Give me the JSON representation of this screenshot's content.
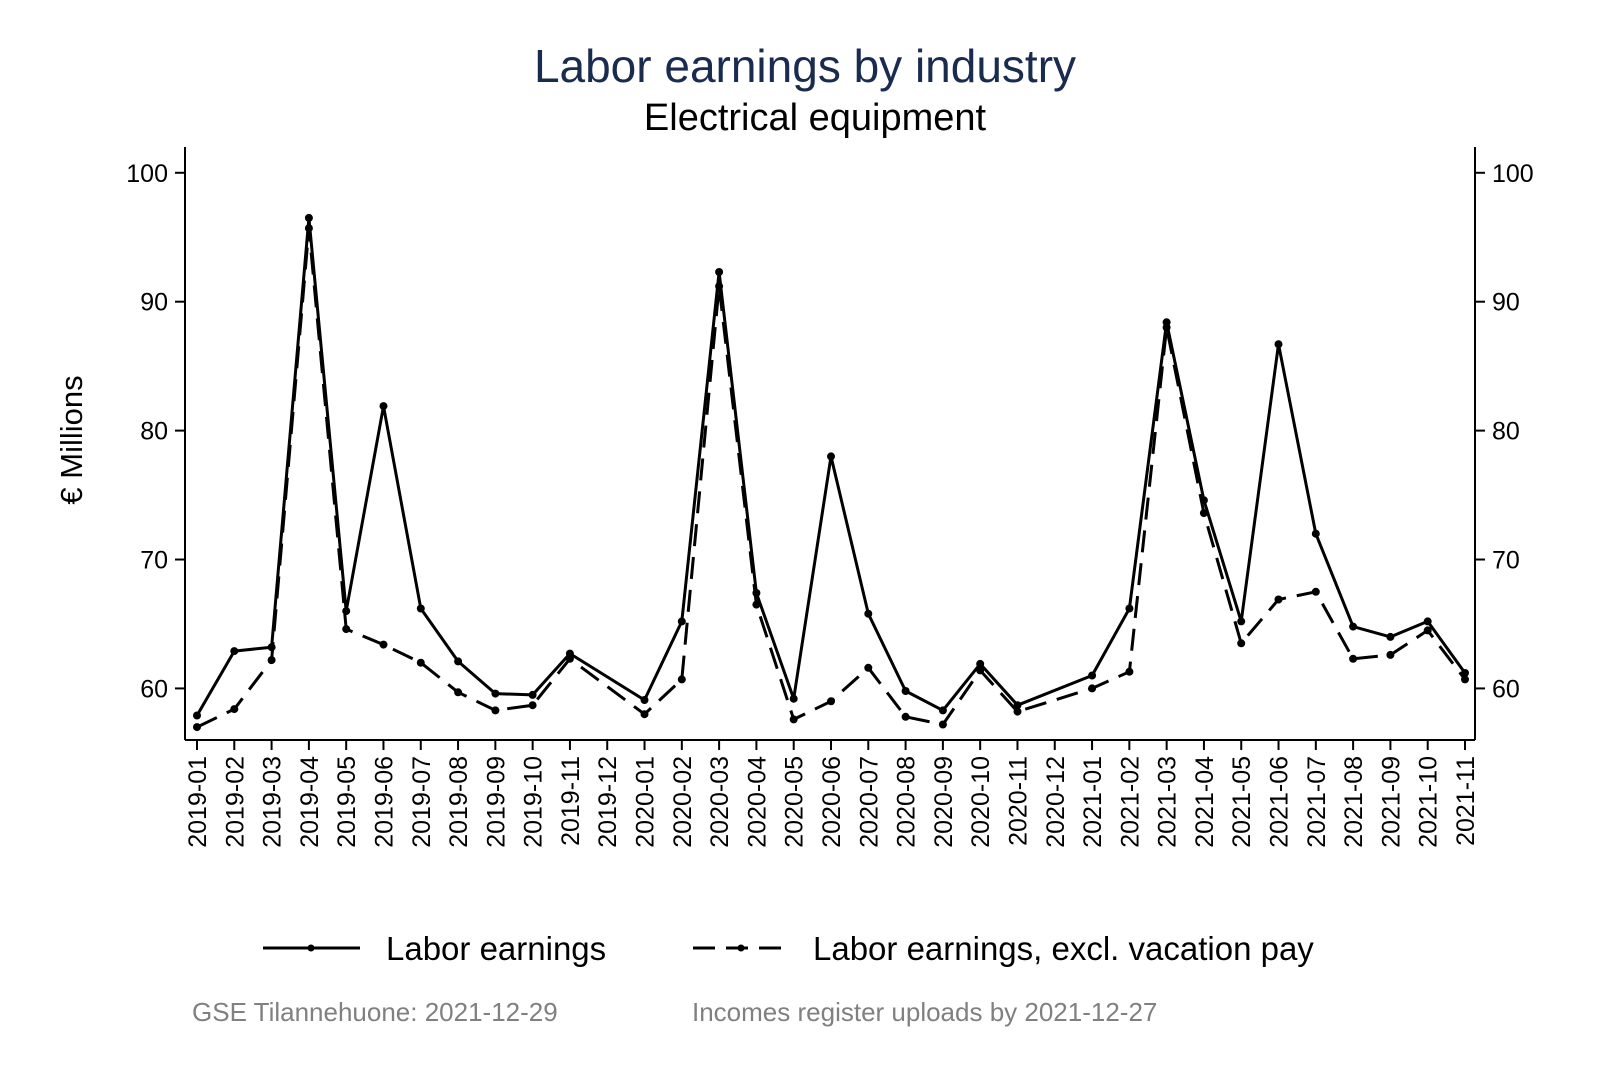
{
  "chart_data": {
    "type": "line",
    "title": "Labor earnings by industry",
    "subtitle": "Electrical equipment",
    "ylabel": "€ Millions",
    "xlabel": "",
    "ylim": [
      56,
      102
    ],
    "yticks": [
      60,
      70,
      80,
      90,
      100
    ],
    "y_axis_right": true,
    "grid": false,
    "legend_position": "bottom",
    "x": [
      "2019-01",
      "2019-02",
      "2019-03",
      "2019-04",
      "2019-05",
      "2019-06",
      "2019-07",
      "2019-08",
      "2019-09",
      "2019-10",
      "2019-11",
      "2019-12",
      "2020-01",
      "2020-02",
      "2020-03",
      "2020-04",
      "2020-05",
      "2020-06",
      "2020-07",
      "2020-08",
      "2020-09",
      "2020-10",
      "2020-11",
      "2020-12",
      "2021-01",
      "2021-02",
      "2021-03",
      "2021-04",
      "2021-05",
      "2021-06",
      "2021-07",
      "2021-08",
      "2021-09",
      "2021-10",
      "2021-11"
    ],
    "series": [
      {
        "name": "Labor earnings",
        "style": "solid",
        "values": [
          57.9,
          62.9,
          63.2,
          96.5,
          66.0,
          81.9,
          66.2,
          62.1,
          59.6,
          59.5,
          62.7,
          null,
          59.1,
          65.2,
          92.3,
          67.4,
          59.2,
          78.0,
          65.8,
          59.8,
          58.3,
          61.9,
          58.7,
          null,
          61.0,
          66.2,
          88.4,
          74.6,
          65.2,
          86.7,
          72.0,
          64.8,
          64.0,
          65.2,
          61.2
        ]
      },
      {
        "name": "Labor earnings, excl. vacation pay",
        "style": "dashed",
        "values": [
          57.0,
          58.4,
          62.2,
          95.7,
          64.6,
          63.4,
          62.0,
          59.7,
          58.3,
          58.7,
          62.3,
          null,
          58.0,
          60.7,
          91.2,
          66.5,
          57.6,
          59.0,
          61.6,
          57.8,
          57.2,
          61.4,
          58.2,
          null,
          60.0,
          61.3,
          88.0,
          73.6,
          63.5,
          66.9,
          67.5,
          62.3,
          62.6,
          64.5,
          60.7
        ]
      }
    ]
  },
  "footer": {
    "source": "GSE Tilannehuone: 2021-12-29",
    "uploads": "Incomes register uploads by 2021-12-27"
  },
  "colors": {
    "title": "#1a2b50",
    "series": "#000000",
    "note": "#808080"
  }
}
